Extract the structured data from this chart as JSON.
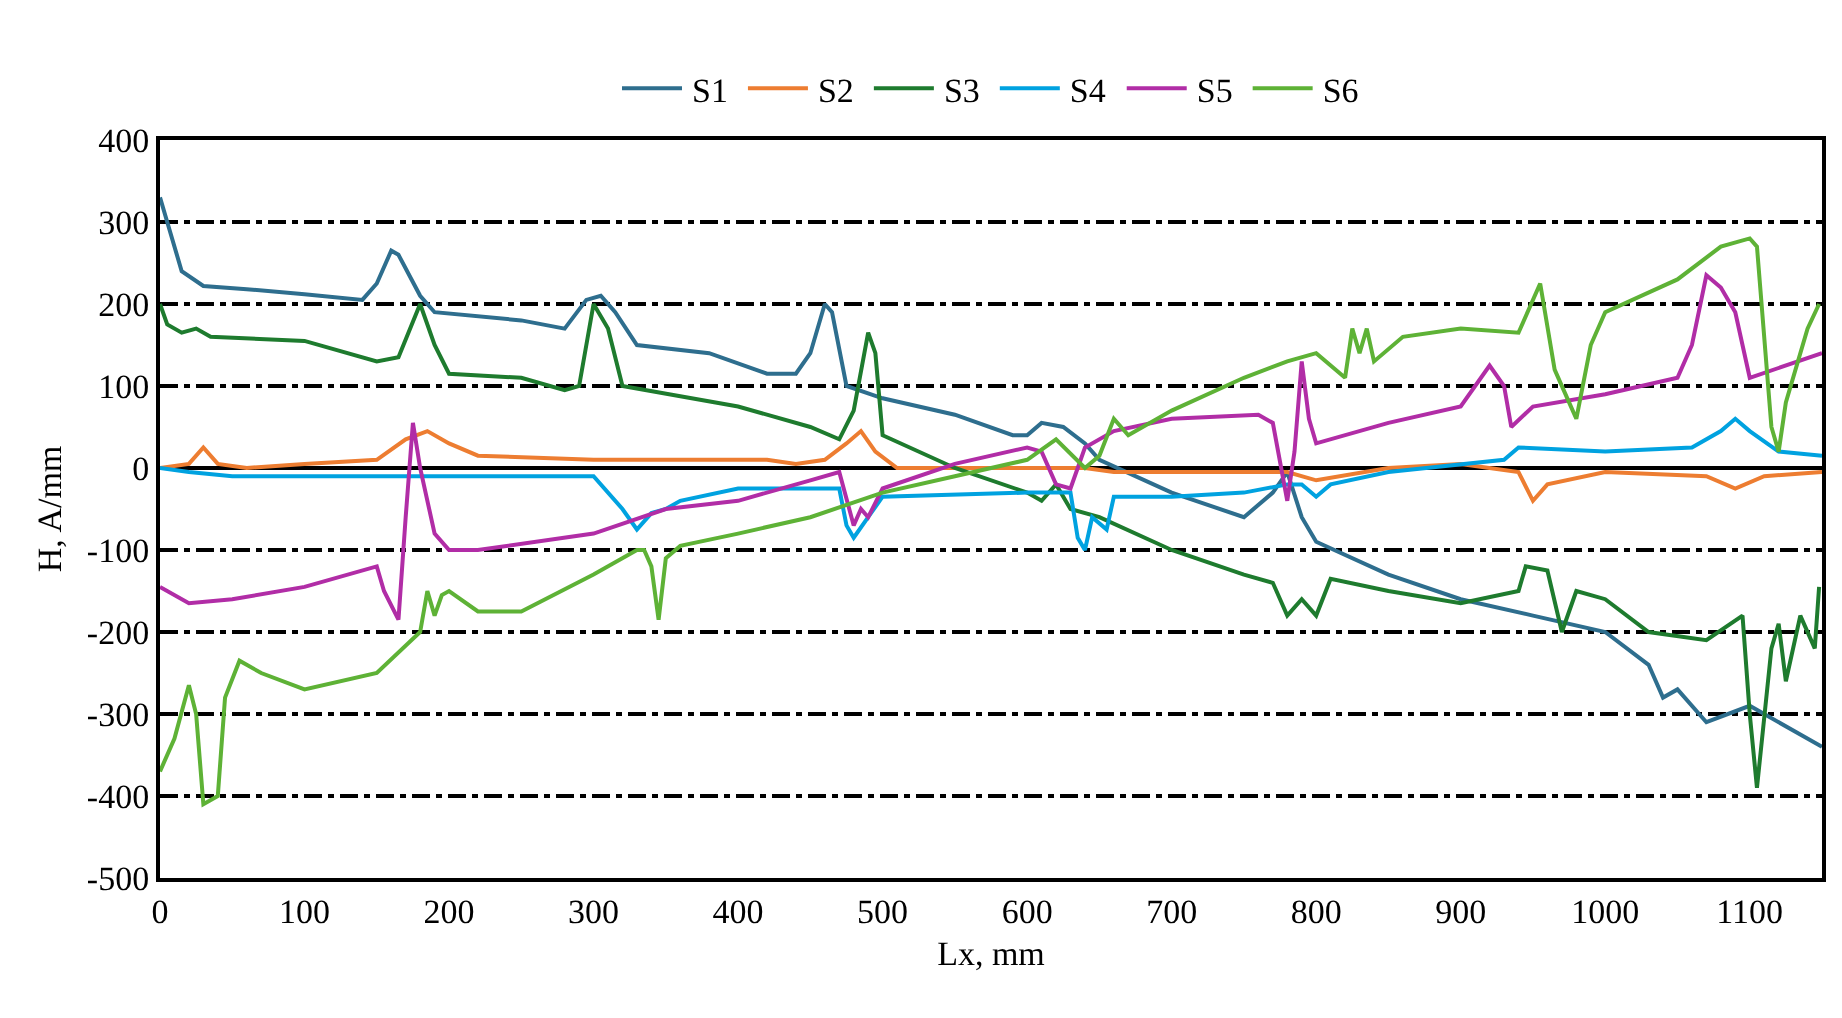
{
  "chart_data": {
    "type": "line",
    "xlabel": "Lx, mm",
    "ylabel": "H, A/mm",
    "xlim": [
      0,
      1150
    ],
    "ylim": [
      -500,
      400
    ],
    "xticks": [
      0,
      100,
      200,
      300,
      400,
      500,
      600,
      700,
      800,
      900,
      1000,
      1100
    ],
    "yticks": [
      -500,
      -400,
      -300,
      -200,
      -100,
      0,
      100,
      200,
      300,
      400
    ],
    "grid": "y",
    "legend": "top",
    "marker": "none",
    "line_style": "solid",
    "series": [
      {
        "name": "S1",
        "color": "#2e6e8e",
        "x": [
          0,
          5,
          15,
          30,
          60,
          100,
          140,
          150,
          160,
          165,
          180,
          190,
          250,
          280,
          295,
          305,
          315,
          330,
          380,
          420,
          440,
          450,
          460,
          465,
          475,
          500,
          550,
          590,
          600,
          610,
          625,
          640,
          650,
          700,
          750,
          770,
          780,
          790,
          800,
          850,
          900,
          950,
          1000,
          1030,
          1040,
          1050,
          1070,
          1100,
          1150
        ],
        "values": [
          330,
          300,
          240,
          222,
          218,
          212,
          205,
          225,
          265,
          260,
          210,
          190,
          180,
          170,
          205,
          210,
          190,
          150,
          140,
          115,
          115,
          140,
          200,
          190,
          100,
          85,
          65,
          40,
          40,
          55,
          50,
          30,
          10,
          -30,
          -60,
          -30,
          -5,
          -60,
          -90,
          -130,
          -160,
          -180,
          -200,
          -240,
          -280,
          -270,
          -310,
          -290,
          -340
        ]
      },
      {
        "name": "S2",
        "color": "#ed7d31",
        "x": [
          0,
          20,
          30,
          40,
          60,
          100,
          150,
          170,
          185,
          200,
          220,
          300,
          420,
          440,
          460,
          475,
          485,
          495,
          510,
          600,
          640,
          660,
          700,
          780,
          800,
          850,
          900,
          940,
          950,
          960,
          1000,
          1070,
          1090,
          1110,
          1150
        ],
        "values": [
          0,
          5,
          25,
          5,
          0,
          5,
          10,
          35,
          45,
          30,
          15,
          10,
          10,
          5,
          10,
          30,
          45,
          20,
          0,
          0,
          0,
          -5,
          -5,
          -5,
          -15,
          0,
          5,
          -5,
          -40,
          -20,
          -5,
          -10,
          -25,
          -10,
          -5
        ]
      },
      {
        "name": "S3",
        "color": "#1e7b2e",
        "x": [
          0,
          5,
          15,
          25,
          35,
          100,
          150,
          165,
          180,
          190,
          200,
          250,
          280,
          290,
          300,
          310,
          320,
          400,
          450,
          470,
          480,
          490,
          495,
          500,
          550,
          600,
          610,
          620,
          630,
          650,
          700,
          750,
          770,
          780,
          790,
          800,
          810,
          850,
          900,
          940,
          945,
          960,
          970,
          980,
          1000,
          1030,
          1070,
          1095,
          1100,
          1105,
          1115,
          1120,
          1125,
          1135,
          1145,
          1148
        ],
        "values": [
          200,
          175,
          165,
          170,
          160,
          155,
          130,
          135,
          200,
          150,
          115,
          110,
          95,
          100,
          200,
          170,
          100,
          75,
          50,
          35,
          70,
          165,
          140,
          40,
          0,
          -30,
          -40,
          -20,
          -50,
          -60,
          -100,
          -130,
          -140,
          -180,
          -160,
          -180,
          -135,
          -150,
          -165,
          -150,
          -120,
          -125,
          -200,
          -150,
          -160,
          -200,
          -210,
          -180,
          -300,
          -390,
          -220,
          -190,
          -260,
          -180,
          -220,
          -145
        ]
      },
      {
        "name": "S4",
        "color": "#00a2e0",
        "x": [
          0,
          20,
          50,
          100,
          200,
          300,
          320,
          330,
          340,
          350,
          360,
          400,
          470,
          475,
          480,
          490,
          500,
          600,
          630,
          635,
          640,
          645,
          655,
          660,
          700,
          750,
          780,
          790,
          800,
          810,
          850,
          930,
          940,
          1000,
          1060,
          1080,
          1090,
          1100,
          1120,
          1150
        ],
        "values": [
          0,
          -5,
          -10,
          -10,
          -10,
          -10,
          -50,
          -75,
          -55,
          -50,
          -40,
          -25,
          -25,
          -70,
          -85,
          -60,
          -35,
          -30,
          -30,
          -85,
          -100,
          -60,
          -75,
          -35,
          -35,
          -30,
          -20,
          -20,
          -35,
          -20,
          -5,
          10,
          25,
          20,
          25,
          45,
          60,
          45,
          20,
          15
        ]
      },
      {
        "name": "S5",
        "color": "#b12da6",
        "x": [
          0,
          20,
          50,
          100,
          150,
          155,
          165,
          170,
          175,
          180,
          190,
          200,
          220,
          300,
          350,
          400,
          450,
          470,
          480,
          485,
          490,
          500,
          550,
          600,
          610,
          620,
          630,
          640,
          660,
          700,
          760,
          770,
          780,
          785,
          790,
          795,
          800,
          850,
          900,
          920,
          930,
          935,
          950,
          1000,
          1050,
          1060,
          1070,
          1080,
          1090,
          1100,
          1150
        ],
        "values": [
          -145,
          -165,
          -160,
          -145,
          -120,
          -150,
          -185,
          -60,
          55,
          0,
          -80,
          -100,
          -100,
          -80,
          -50,
          -40,
          -15,
          -5,
          -70,
          -50,
          -60,
          -25,
          5,
          25,
          20,
          -20,
          -25,
          25,
          45,
          60,
          65,
          55,
          -40,
          20,
          130,
          60,
          30,
          55,
          75,
          125,
          100,
          50,
          75,
          90,
          110,
          150,
          235,
          220,
          190,
          110,
          140
        ]
      },
      {
        "name": "S6",
        "color": "#5eb236",
        "x": [
          0,
          10,
          20,
          25,
          30,
          40,
          45,
          55,
          70,
          100,
          150,
          180,
          185,
          190,
          195,
          200,
          220,
          250,
          300,
          330,
          335,
          340,
          345,
          350,
          360,
          400,
          450,
          500,
          550,
          600,
          620,
          640,
          650,
          660,
          670,
          700,
          750,
          780,
          800,
          820,
          825,
          830,
          835,
          840,
          860,
          900,
          940,
          955,
          965,
          975,
          980,
          990,
          1000,
          1050,
          1080,
          1100,
          1105,
          1115,
          1120,
          1125,
          1140,
          1148
        ],
        "values": [
          -370,
          -330,
          -265,
          -300,
          -410,
          -400,
          -280,
          -235,
          -250,
          -270,
          -250,
          -200,
          -150,
          -180,
          -155,
          -150,
          -175,
          -175,
          -130,
          -100,
          -100,
          -120,
          -185,
          -110,
          -95,
          -80,
          -60,
          -30,
          -10,
          10,
          35,
          0,
          15,
          60,
          40,
          70,
          110,
          130,
          140,
          110,
          170,
          140,
          170,
          130,
          160,
          170,
          165,
          225,
          120,
          80,
          60,
          150,
          190,
          230,
          270,
          280,
          270,
          50,
          20,
          80,
          170,
          200
        ]
      }
    ]
  }
}
